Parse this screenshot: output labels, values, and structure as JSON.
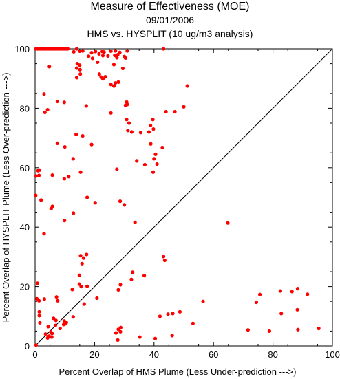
{
  "chart_data": {
    "type": "scatter",
    "title": "Measure of Effectiveness (MOE)",
    "subtitle": "09/01/2006",
    "subtitle2": "HMS vs. HYSPLIT  (10 ug/m3 analysis)",
    "xlabel": "Percent Overlap of HMS Plume (Less Under-prediction --->)",
    "ylabel": "Percent Overlap of HYSPLIT Plume (Less Over-prediction --->)",
    "xlim": [
      0,
      100
    ],
    "ylim": [
      0,
      100
    ],
    "xticks": [
      "0",
      "20",
      "40",
      "60",
      "80",
      "100"
    ],
    "yticks": [
      "0",
      "20",
      "40",
      "60",
      "80",
      "100"
    ],
    "diagonal": [
      [
        0,
        0
      ],
      [
        100,
        100
      ]
    ],
    "point_color": "#ff0000",
    "points": [
      [
        0.3,
        100
      ],
      [
        0.8,
        100
      ],
      [
        1.2,
        100
      ],
      [
        1.6,
        100
      ],
      [
        2.0,
        100
      ],
      [
        2.5,
        100
      ],
      [
        3.0,
        100
      ],
      [
        3.5,
        100
      ],
      [
        4.0,
        100
      ],
      [
        4.5,
        100
      ],
      [
        5.0,
        100
      ],
      [
        5.5,
        100
      ],
      [
        6.0,
        100
      ],
      [
        6.5,
        100
      ],
      [
        7.0,
        100
      ],
      [
        7.5,
        100
      ],
      [
        8.0,
        100
      ],
      [
        8.5,
        100
      ],
      [
        9.0,
        100
      ],
      [
        9.5,
        100
      ],
      [
        10.0,
        100
      ],
      [
        10.5,
        100
      ],
      [
        11.0,
        100
      ],
      [
        14.0,
        100
      ],
      [
        43.2,
        100
      ],
      [
        13.0,
        99
      ],
      [
        15.0,
        99.2
      ],
      [
        16.0,
        99.3
      ],
      [
        19.0,
        98.7
      ],
      [
        20.3,
        99.1
      ],
      [
        21.5,
        98.3
      ],
      [
        22.6,
        99.1
      ],
      [
        23.2,
        98.9
      ],
      [
        25.5,
        99.2
      ],
      [
        27.0,
        99.3
      ],
      [
        28.5,
        98.8
      ],
      [
        31.0,
        99.3
      ],
      [
        18.0,
        97.5
      ],
      [
        19.3,
        96.8
      ],
      [
        22.8,
        97.7
      ],
      [
        24.5,
        97.6
      ],
      [
        26.8,
        97.8
      ],
      [
        27.5,
        97.0
      ],
      [
        27.8,
        98.0
      ],
      [
        30.0,
        97.4
      ],
      [
        30.4,
        96.9
      ],
      [
        4.8,
        94.0
      ],
      [
        14.2,
        95.0
      ],
      [
        15.0,
        94.5
      ],
      [
        14.0,
        93.5
      ],
      [
        15.1,
        93.0
      ],
      [
        21.0,
        95.5
      ],
      [
        26.5,
        94.7
      ],
      [
        29.5,
        93.4
      ],
      [
        15.2,
        91.5
      ],
      [
        14.0,
        90.3
      ],
      [
        21.6,
        91.5
      ],
      [
        22.2,
        90.5
      ],
      [
        22.8,
        89.9
      ],
      [
        23.6,
        90.6
      ],
      [
        25.5,
        88.0
      ],
      [
        27.0,
        88.5
      ],
      [
        28.0,
        88.8
      ],
      [
        26.5,
        87.5
      ],
      [
        51.2,
        87.5
      ],
      [
        3.0,
        84.8
      ],
      [
        7.5,
        82.3
      ],
      [
        9.8,
        82.0
      ],
      [
        17.2,
        80.8
      ],
      [
        30.8,
        82.1
      ],
      [
        30.4,
        81.0
      ],
      [
        31.0,
        81.3
      ],
      [
        44.0,
        78.8
      ],
      [
        47.0,
        78.8
      ],
      [
        50.0,
        80.5
      ],
      [
        4.2,
        79.5
      ],
      [
        3.3,
        78.6
      ],
      [
        25.5,
        78.4
      ],
      [
        30.8,
        76.2
      ],
      [
        31.6,
        75.0
      ],
      [
        39.6,
        76.2
      ],
      [
        38.8,
        74.2
      ],
      [
        31.2,
        72.5
      ],
      [
        32.5,
        72.0
      ],
      [
        35.5,
        71.8
      ],
      [
        38.3,
        72.0
      ],
      [
        39.8,
        73.0
      ],
      [
        13.8,
        71.2
      ],
      [
        16.0,
        70.7
      ],
      [
        7.5,
        68.2
      ],
      [
        10.0,
        67.0
      ],
      [
        19.0,
        67.8
      ],
      [
        38.9,
        68.0
      ],
      [
        42.8,
        66.8
      ],
      [
        12.8,
        63.0
      ],
      [
        34.2,
        62.3
      ],
      [
        36.9,
        61.0
      ],
      [
        40.0,
        63.0
      ],
      [
        40.5,
        64.5
      ],
      [
        41.0,
        61.2
      ],
      [
        39.7,
        58.5
      ],
      [
        1.0,
        59.0
      ],
      [
        1.5,
        59.2
      ],
      [
        0.3,
        57.2
      ],
      [
        1.3,
        57.4
      ],
      [
        5.8,
        57.5
      ],
      [
        11.3,
        57.0
      ],
      [
        9.8,
        56.3
      ],
      [
        15.3,
        58.5
      ],
      [
        27.5,
        59.5
      ],
      [
        0.2,
        50.7
      ],
      [
        2.0,
        49.1
      ],
      [
        5.4,
        46.2
      ],
      [
        5.8,
        47.0
      ],
      [
        17.5,
        50.0
      ],
      [
        20.2,
        48.2
      ],
      [
        28.6,
        48.7
      ],
      [
        30.0,
        47.5
      ],
      [
        12.9,
        44.7
      ],
      [
        9.9,
        42.2
      ],
      [
        33.6,
        41.6
      ],
      [
        64.8,
        41.4
      ],
      [
        3.0,
        37.8
      ],
      [
        15.3,
        30.4
      ],
      [
        16.3,
        29.6
      ],
      [
        17.3,
        30.8
      ],
      [
        15.8,
        27.7
      ],
      [
        43.2,
        30.1
      ],
      [
        43.6,
        28.8
      ],
      [
        14.9,
        23.8
      ],
      [
        14.9,
        20.8
      ],
      [
        15.5,
        20.0
      ],
      [
        17.5,
        20.1
      ],
      [
        28.7,
        20.6
      ],
      [
        28.0,
        18.9
      ],
      [
        32.8,
        24.8
      ],
      [
        32.4,
        22.4
      ],
      [
        36.7,
        23.7
      ],
      [
        0.8,
        21.1
      ],
      [
        12.5,
        19.0
      ],
      [
        0.6,
        15.9
      ],
      [
        1.3,
        15.2
      ],
      [
        3.1,
        15.8
      ],
      [
        7.2,
        16.5
      ],
      [
        7.6,
        15.2
      ],
      [
        16.5,
        14.1
      ],
      [
        20.8,
        16.1
      ],
      [
        56.5,
        15.0
      ],
      [
        74.4,
        14.7
      ],
      [
        75.6,
        17.3
      ],
      [
        82.5,
        18.5
      ],
      [
        86.4,
        18.3
      ],
      [
        88.3,
        19.3
      ],
      [
        91.6,
        17.4
      ],
      [
        82.8,
        10.9
      ],
      [
        88.2,
        12.2
      ],
      [
        1.4,
        11.5
      ],
      [
        1.4,
        10.2
      ],
      [
        6.2,
        9.3
      ],
      [
        7.0,
        8.6
      ],
      [
        9.8,
        8.4
      ],
      [
        10.5,
        7.9
      ],
      [
        12.8,
        9.8
      ],
      [
        10.3,
        7.5
      ],
      [
        42.0,
        10.0
      ],
      [
        44.7,
        10.7
      ],
      [
        46.3,
        10.9
      ],
      [
        48.7,
        11.5
      ],
      [
        1.6,
        7.8
      ],
      [
        4.4,
        6.5
      ],
      [
        5.3,
        4.7
      ],
      [
        5.7,
        4.2
      ],
      [
        6.8,
        6.9
      ],
      [
        8.4,
        5.9
      ],
      [
        9.6,
        7.2
      ],
      [
        28.0,
        5.6
      ],
      [
        28.8,
        6.2
      ],
      [
        53.1,
        7.6
      ],
      [
        3.5,
        4.0
      ],
      [
        4.7,
        3.3
      ],
      [
        4.2,
        2.7
      ],
      [
        5.6,
        3.0
      ],
      [
        27.2,
        4.4
      ],
      [
        28.7,
        4.8
      ],
      [
        27.8,
        2.0
      ],
      [
        35.2,
        3.0
      ],
      [
        40.4,
        2.5
      ],
      [
        46.1,
        3.5
      ],
      [
        71.6,
        5.4
      ],
      [
        78.8,
        5.0
      ],
      [
        88.4,
        5.5
      ],
      [
        95.4,
        5.9
      ],
      [
        0.3,
        0.3
      ]
    ]
  }
}
